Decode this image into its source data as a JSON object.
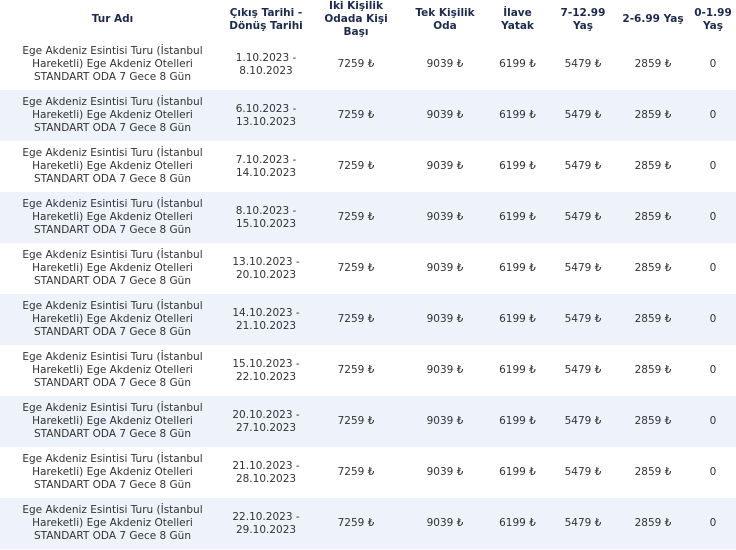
{
  "table": {
    "header": [
      "Tur Adı",
      "Çıkış Tarihi - Dönüş Tarihi",
      "İki Kişilik Odada Kişi Başı",
      "Tek Kişilik Oda",
      "İlave Yatak",
      "7-12.99 Yaş",
      "2-6.99 Yaş",
      "0-1.99 Yaş"
    ],
    "rows": [
      [
        "Ege Akdeniz Esintisi Turu (İstanbul Hareketli) Ege Akdeniz Otelleri STANDART ODA 7 Gece 8 Gün",
        "1.10.2023 - 8.10.2023",
        "7259 ₺",
        "9039 ₺",
        "6199 ₺",
        "5479 ₺",
        "2859 ₺",
        "0"
      ],
      [
        "Ege Akdeniz Esintisi Turu (İstanbul Hareketli) Ege Akdeniz Otelleri STANDART ODA 7 Gece 8 Gün",
        "6.10.2023 - 13.10.2023",
        "7259 ₺",
        "9039 ₺",
        "6199 ₺",
        "5479 ₺",
        "2859 ₺",
        "0"
      ],
      [
        "Ege Akdeniz Esintisi Turu (İstanbul Hareketli) Ege Akdeniz Otelleri STANDART ODA 7 Gece 8 Gün",
        "7.10.2023 - 14.10.2023",
        "7259 ₺",
        "9039 ₺",
        "6199 ₺",
        "5479 ₺",
        "2859 ₺",
        "0"
      ],
      [
        "Ege Akdeniz Esintisi Turu (İstanbul Hareketli) Ege Akdeniz Otelleri STANDART ODA 7 Gece 8 Gün",
        "8.10.2023 - 15.10.2023",
        "7259 ₺",
        "9039 ₺",
        "6199 ₺",
        "5479 ₺",
        "2859 ₺",
        "0"
      ],
      [
        "Ege Akdeniz Esintisi Turu (İstanbul Hareketli) Ege Akdeniz Otelleri STANDART ODA 7 Gece 8 Gün",
        "13.10.2023 - 20.10.2023",
        "7259 ₺",
        "9039 ₺",
        "6199 ₺",
        "5479 ₺",
        "2859 ₺",
        "0"
      ],
      [
        "Ege Akdeniz Esintisi Turu (İstanbul Hareketli) Ege Akdeniz Otelleri STANDART ODA 7 Gece 8 Gün",
        "14.10.2023 - 21.10.2023",
        "7259 ₺",
        "9039 ₺",
        "6199 ₺",
        "5479 ₺",
        "2859 ₺",
        "0"
      ],
      [
        "Ege Akdeniz Esintisi Turu (İstanbul Hareketli) Ege Akdeniz Otelleri STANDART ODA 7 Gece 8 Gün",
        "15.10.2023 - 22.10.2023",
        "7259 ₺",
        "9039 ₺",
        "6199 ₺",
        "5479 ₺",
        "2859 ₺",
        "0"
      ],
      [
        "Ege Akdeniz Esintisi Turu (İstanbul Hareketli) Ege Akdeniz Otelleri STANDART ODA 7 Gece 8 Gün",
        "20.10.2023 - 27.10.2023",
        "7259 ₺",
        "9039 ₺",
        "6199 ₺",
        "5479 ₺",
        "2859 ₺",
        "0"
      ],
      [
        "Ege Akdeniz Esintisi Turu (İstanbul Hareketli) Ege Akdeniz Otelleri STANDART ODA 7 Gece 8 Gün",
        "21.10.2023 - 28.10.2023",
        "7259 ₺",
        "9039 ₺",
        "6199 ₺",
        "5479 ₺",
        "2859 ₺",
        "0"
      ],
      [
        "Ege Akdeniz Esintisi Turu (İstanbul Hareketli) Ege Akdeniz Otelleri STANDART ODA 7 Gece 8 Gün",
        "22.10.2023 - 29.10.2023",
        "7259 ₺",
        "9039 ₺",
        "6199 ₺",
        "5479 ₺",
        "2859 ₺",
        "0"
      ]
    ]
  }
}
